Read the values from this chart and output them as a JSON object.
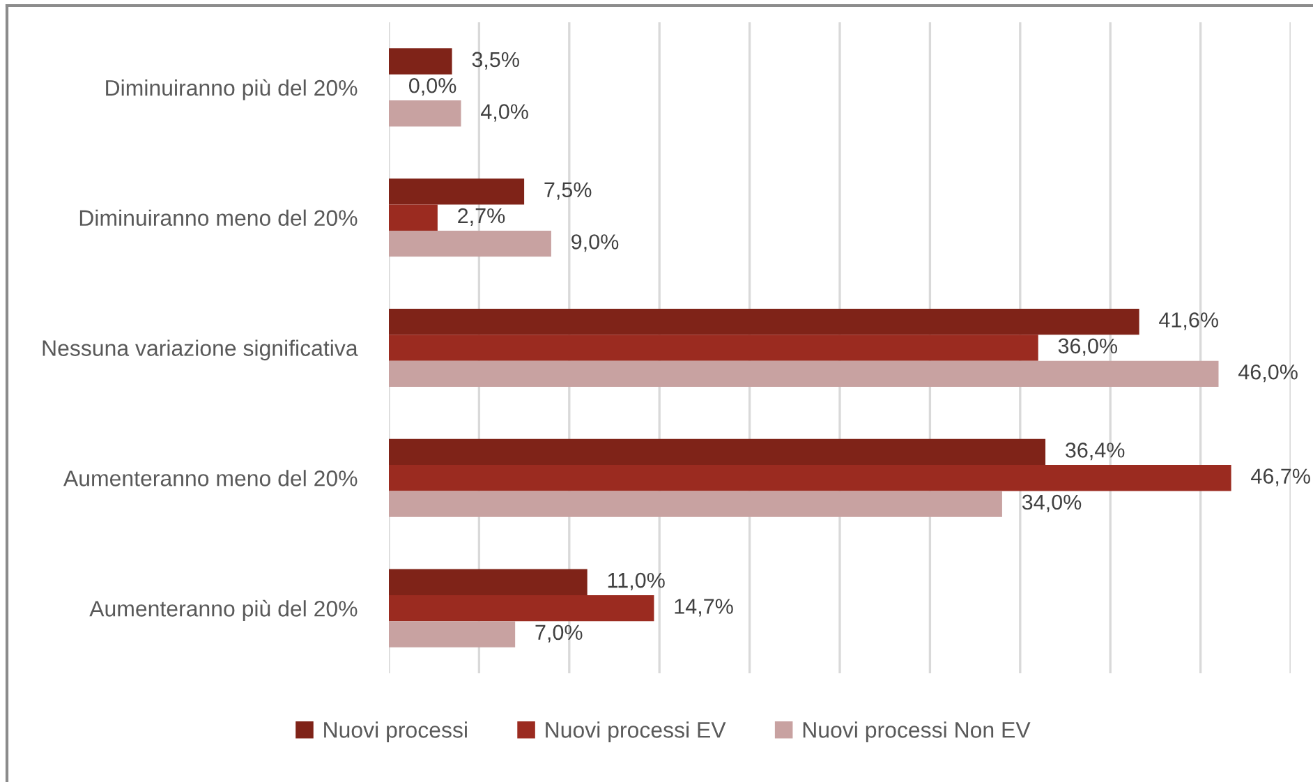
{
  "chart_data": {
    "type": "bar",
    "orientation": "horizontal",
    "categories": [
      "Diminuiranno più del 20%",
      "Diminuiranno meno del 20%",
      "Nessuna variazione significativa",
      "Aumenteranno meno del 20%",
      "Aumenteranno più del 20%"
    ],
    "series": [
      {
        "name": "Nuovi processi",
        "color": "#7f2318",
        "values": [
          3.5,
          7.5,
          41.6,
          36.4,
          11.0
        ],
        "value_labels": [
          "3,5%",
          "7,5%",
          "41,6%",
          "36,4%",
          "11,0%"
        ]
      },
      {
        "name": "Nuovi processi EV",
        "color": "#9b2b20",
        "values": [
          0.0,
          2.7,
          36.0,
          46.7,
          14.7
        ],
        "value_labels": [
          "0,0%",
          "2,7%",
          "36,0%",
          "46,7%",
          "14,7%"
        ]
      },
      {
        "name": "Nuovi processi Non EV",
        "color": "#c8a2a1",
        "values": [
          4.0,
          9.0,
          46.0,
          34.0,
          7.0
        ],
        "value_labels": [
          "4,0%",
          "9,0%",
          "46,0%",
          "34,0%",
          "7,0%"
        ]
      }
    ],
    "xlim": [
      0,
      50
    ],
    "xticks": [
      {
        "value": 0,
        "label": null
      },
      {
        "value": 5,
        "label": null
      },
      {
        "value": 10,
        "label": null
      },
      {
        "value": 15,
        "label": null
      },
      {
        "value": 20,
        "label": null
      },
      {
        "value": 25,
        "label": null
      },
      {
        "value": 30,
        "label": null
      },
      {
        "value": 35,
        "label": null
      },
      {
        "value": 40,
        "label": null
      },
      {
        "value": 45,
        "label": null
      },
      {
        "value": 50,
        "label": null
      }
    ],
    "grid": "x",
    "legend": "bottom",
    "tick_labels": "y"
  }
}
